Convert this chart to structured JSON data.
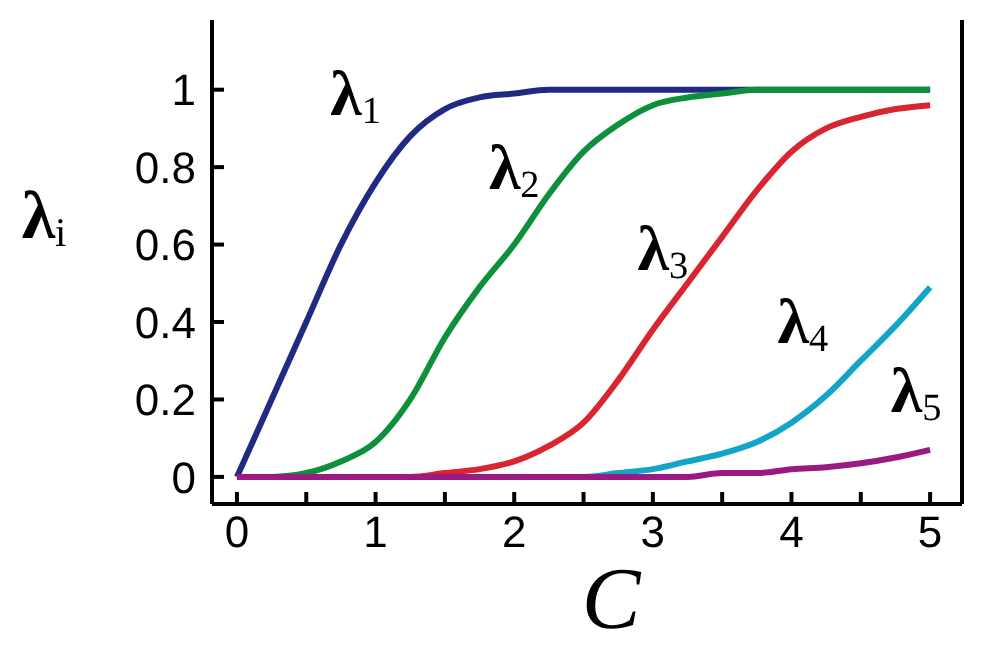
{
  "chart_data": {
    "type": "line",
    "xlabel": "C",
    "ylabel": "λ$_{i}$",
    "x": [
      0,
      0.25,
      0.5,
      0.75,
      1,
      1.25,
      1.5,
      1.75,
      2,
      2.25,
      2.5,
      2.75,
      3,
      3.25,
      3.5,
      3.75,
      4,
      4.25,
      4.5,
      4.75,
      5
    ],
    "series": [
      {
        "name": "λ$_{1}$",
        "color": "#1f2a80",
        "values": [
          0,
          0.2,
          0.4,
          0.6,
          0.76,
          0.88,
          0.95,
          0.98,
          0.99,
          1,
          1,
          1,
          1,
          1,
          1,
          1,
          1,
          1,
          1,
          1,
          1
        ]
      },
      {
        "name": "λ$_{2}$",
        "color": "#0e8f3a",
        "values": [
          0,
          0,
          0.01,
          0.04,
          0.09,
          0.2,
          0.36,
          0.49,
          0.6,
          0.73,
          0.84,
          0.91,
          0.96,
          0.98,
          0.99,
          1,
          1,
          1,
          1,
          1,
          1
        ]
      },
      {
        "name": "λ$_{3}$",
        "color": "#d9252f",
        "values": [
          null,
          null,
          null,
          null,
          0,
          0,
          0.01,
          0.02,
          0.04,
          0.08,
          0.14,
          0.25,
          0.38,
          0.5,
          0.62,
          0.74,
          0.84,
          0.9,
          0.93,
          0.95,
          0.96
        ]
      },
      {
        "name": "λ$_{4}$",
        "color": "#12a5c8",
        "values": [
          null,
          null,
          null,
          null,
          null,
          null,
          null,
          null,
          null,
          0,
          0,
          0.01,
          0.02,
          0.04,
          0.06,
          0.09,
          0.14,
          0.21,
          0.3,
          0.39,
          0.49
        ]
      },
      {
        "name": "λ$_{5}$",
        "color": "#9b1a82",
        "values": [
          0,
          0,
          0,
          0,
          0,
          0,
          0,
          0,
          0,
          0,
          0,
          0,
          0,
          0,
          0.01,
          0.01,
          0.02,
          0.025,
          0.035,
          0.05,
          0.07
        ]
      }
    ],
    "xlim": [
      -0.18,
      5.23
    ],
    "ylim": [
      -0.07,
      1.18
    ],
    "xticks": [
      0,
      {
        "value": 0.5,
        "label": null
      },
      1,
      {
        "value": 1.5,
        "label": null
      },
      2,
      {
        "value": 2.5,
        "label": null
      },
      3,
      {
        "value": 3.5,
        "label": null
      },
      4,
      {
        "value": 4.5,
        "label": null
      },
      5
    ],
    "yticks": [
      0,
      0.2,
      0.4,
      0.6,
      0.8,
      1
    ],
    "marker": "none",
    "line_style": "solid"
  }
}
